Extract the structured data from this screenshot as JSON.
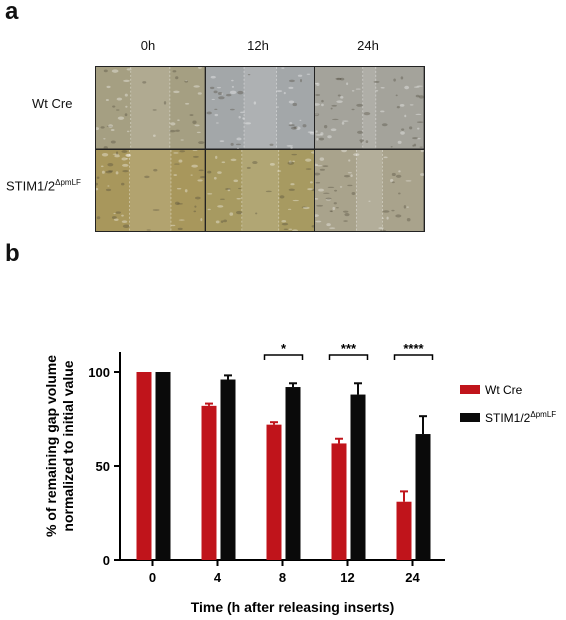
{
  "panel_a": {
    "letter": "a",
    "time_points": [
      "0h",
      "12h",
      "24h"
    ],
    "rows": [
      {
        "label": "Wt Cre",
        "sup": ""
      },
      {
        "label": "STIM1/2",
        "sup": "ΔpmLF"
      }
    ],
    "colors": {
      "wt_0": "#a59f82",
      "wt_12": "#a3a7a9",
      "wt_24": "#a4a39b",
      "stim_0": "#a8975c",
      "stim_12": "#a79a61",
      "stim_24": "#a9a38c"
    }
  },
  "panel_b": {
    "letter": "b"
  },
  "chart_data": {
    "type": "bar",
    "categories": [
      "0",
      "4",
      "8",
      "12",
      "24"
    ],
    "xlabel": "Time (h after releasing inserts)",
    "ylabel_lines": [
      "% of remaining gap volume",
      "normalized to initial value"
    ],
    "ylim": [
      0,
      100
    ],
    "yticks": [
      "0",
      "50",
      "100"
    ],
    "series": [
      {
        "name": "Wt Cre",
        "name_sup": "",
        "color": "#c0141b",
        "values": [
          100,
          82,
          72,
          62,
          31
        ],
        "errors": [
          0,
          1.2,
          1.3,
          2.5,
          5.5
        ]
      },
      {
        "name": "STIM1/2",
        "name_sup": "ΔpmLF",
        "color": "#0a0a0a",
        "values": [
          100,
          96,
          92,
          88,
          67
        ],
        "errors": [
          0,
          2.2,
          2.0,
          6.0,
          9.5
        ]
      }
    ],
    "significance": [
      {
        "category": "8",
        "label": "*"
      },
      {
        "category": "12",
        "label": "***"
      },
      {
        "category": "24",
        "label": "****"
      }
    ],
    "legend_position": "right"
  }
}
